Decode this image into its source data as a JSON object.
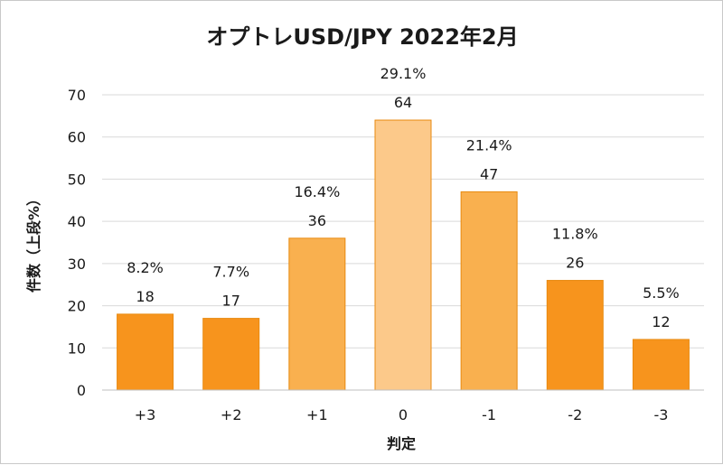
{
  "chart_data": {
    "type": "bar",
    "title": "オプトレUSD/JPY 2022年2月",
    "xlabel": "判定",
    "ylabel": "件数（上段%）",
    "categories": [
      "+3",
      "+2",
      "+1",
      "0",
      "-1",
      "-2",
      "-3"
    ],
    "values": [
      18,
      17,
      36,
      64,
      47,
      26,
      12
    ],
    "percent_labels": [
      "8.2%",
      "7.7%",
      "16.4%",
      "29.1%",
      "21.4%",
      "11.8%",
      "5.5%"
    ],
    "bar_colors": [
      "#f7941d",
      "#f7941d",
      "#f9b04f",
      "#fcc98a",
      "#f9b04f",
      "#f7941d",
      "#f7941d"
    ],
    "ylim": [
      0,
      70
    ],
    "yticks": [
      0,
      10,
      20,
      30,
      40,
      50,
      60,
      70
    ],
    "grid": true,
    "legend": "none"
  }
}
